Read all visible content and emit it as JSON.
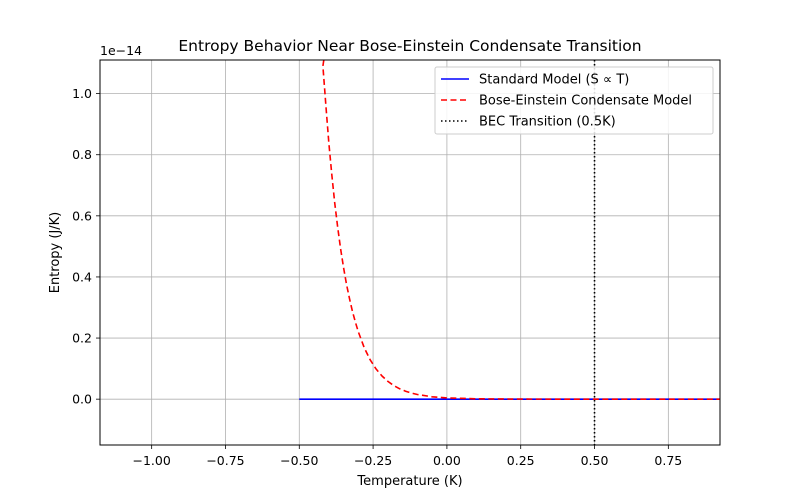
{
  "chart_data": {
    "type": "line",
    "title": "Entropy Behavior Near Bose-Einstein Condensate Transition",
    "xlabel": "Temperature (K)",
    "ylabel": "Entropy (J/K)",
    "y_offset_text": "1e−14",
    "xlim": [
      -1.175,
      0.925
    ],
    "ylim": [
      -0.15,
      1.11
    ],
    "y_scale_factor": 1e-14,
    "x_ticks": [
      -1.0,
      -0.75,
      -0.5,
      -0.25,
      0.0,
      0.25,
      0.5,
      0.75
    ],
    "x_tick_labels": [
      "−1.00",
      "−0.75",
      "−0.50",
      "−0.25",
      "0.00",
      "0.25",
      "0.50",
      "0.75"
    ],
    "y_ticks": [
      0.0,
      0.2,
      0.4,
      0.6,
      0.8,
      1.0
    ],
    "y_tick_labels": [
      "0.0",
      "0.2",
      "0.4",
      "0.6",
      "0.8",
      "1.0"
    ],
    "grid": true,
    "legend_position": "top-right",
    "series": [
      {
        "name": "Standard Model (S ∝ T)",
        "color": "#0000ff",
        "style": "solid",
        "x": [
          -0.5,
          0.925
        ],
        "y": [
          0.0,
          0.0
        ]
      },
      {
        "name": "Bose-Einstein Condensate Model",
        "color": "#ff0000",
        "style": "dashed",
        "x": [
          -0.417,
          -0.42,
          -0.41,
          -0.4,
          -0.39,
          -0.38,
          -0.37,
          -0.36,
          -0.35,
          -0.34,
          -0.33,
          -0.32,
          -0.31,
          -0.3,
          -0.28,
          -0.26,
          -0.24,
          -0.22,
          -0.2,
          -0.18,
          -0.16,
          -0.14,
          -0.12,
          -0.1,
          -0.05,
          0.0,
          0.1,
          0.25,
          0.5,
          0.75,
          0.925
        ],
        "y": [
          1.11,
          1.09,
          0.96,
          0.84,
          0.735,
          0.643,
          0.562,
          0.492,
          0.43,
          0.376,
          0.329,
          0.288,
          0.252,
          0.2205,
          0.1688,
          0.1293,
          0.099,
          0.0758,
          0.058,
          0.0444,
          0.034,
          0.026,
          0.0199,
          0.0153,
          0.0079,
          0.0041,
          0.0011,
          0.0002,
          0.0,
          0.0,
          0.0
        ]
      },
      {
        "name": "BEC Transition (0.5K)",
        "color": "#000000",
        "style": "dotted",
        "vertical_x": 0.5
      }
    ]
  }
}
